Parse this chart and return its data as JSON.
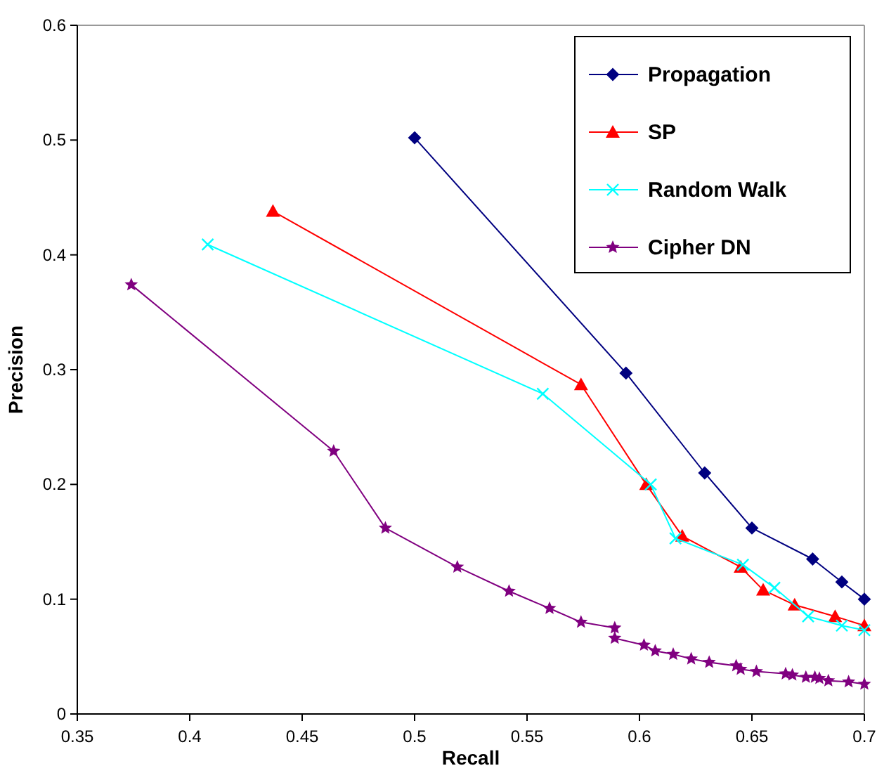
{
  "chart_data": {
    "type": "line",
    "xlabel": "Recall",
    "ylabel": "Precision",
    "xlim": [
      0.35,
      0.7
    ],
    "ylim": [
      0,
      0.6
    ],
    "xticks": [
      0.35,
      0.4,
      0.45,
      0.5,
      0.55,
      0.6,
      0.65,
      0.7
    ],
    "yticks": [
      0,
      0.1,
      0.2,
      0.3,
      0.4,
      0.5,
      0.6
    ],
    "grid": false,
    "legend": "top right",
    "line_style": "solid",
    "series": [
      {
        "name": "Propagation",
        "color": "#000080",
        "marker": "diamond",
        "x": [
          0.5,
          0.594,
          0.629,
          0.65,
          0.677,
          0.69,
          0.7
        ],
        "values": [
          0.502,
          0.297,
          0.21,
          0.162,
          0.135,
          0.115,
          0.1
        ]
      },
      {
        "name": "SP",
        "color": "#ff0000",
        "marker": "triangle",
        "x": [
          0.437,
          0.574,
          0.603,
          0.619,
          0.645,
          0.655,
          0.669,
          0.687,
          0.7
        ],
        "values": [
          0.438,
          0.287,
          0.2,
          0.155,
          0.128,
          0.108,
          0.095,
          0.085,
          0.077
        ]
      },
      {
        "name": "Random Walk",
        "color": "#00ffff",
        "marker": "cross",
        "x": [
          0.408,
          0.557,
          0.605,
          0.616,
          0.646,
          0.66,
          0.675,
          0.69,
          0.7
        ],
        "values": [
          0.409,
          0.279,
          0.2,
          0.153,
          0.13,
          0.11,
          0.085,
          0.077,
          0.073
        ]
      },
      {
        "name": "Cipher DN",
        "color": "#800080",
        "marker": "star",
        "x": [
          0.374,
          0.464,
          0.487,
          0.519,
          0.542,
          0.56,
          0.574,
          0.589,
          0.589,
          0.602,
          0.607,
          0.615,
          0.623,
          0.631,
          0.643,
          0.645,
          0.652,
          0.665,
          0.668,
          0.674,
          0.678,
          0.68,
          0.684,
          0.693,
          0.7
        ],
        "values": [
          0.374,
          0.229,
          0.162,
          0.128,
          0.107,
          0.092,
          0.08,
          0.075,
          0.066,
          0.06,
          0.055,
          0.052,
          0.048,
          0.045,
          0.042,
          0.039,
          0.037,
          0.035,
          0.034,
          0.032,
          0.032,
          0.031,
          0.029,
          0.028,
          0.026
        ]
      }
    ]
  }
}
